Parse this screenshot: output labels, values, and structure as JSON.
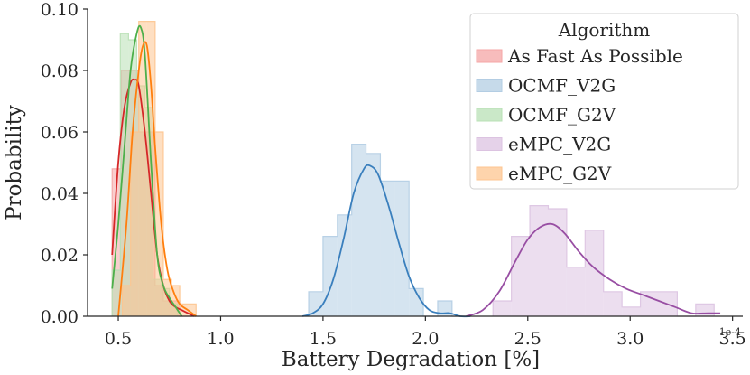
{
  "chart_data": {
    "type": "histogram",
    "xlabel": "Battery Degradation [%]",
    "ylabel": "Probability",
    "x_offset_label": "1e-4",
    "xlim": [
      0.35,
      3.55
    ],
    "ylim": [
      0.0,
      0.1
    ],
    "xticks": [
      {
        "value": 0.5,
        "label": "0.5"
      },
      {
        "value": 1.0,
        "label": "1.0"
      },
      {
        "value": 1.5,
        "label": "1.5"
      },
      {
        "value": 2.0,
        "label": "2.0"
      },
      {
        "value": 2.5,
        "label": "2.5"
      },
      {
        "value": 3.0,
        "label": "3.0"
      },
      {
        "value": 3.5,
        "label": "3.5"
      }
    ],
    "yticks": [
      {
        "value": 0.0,
        "label": "0.00"
      },
      {
        "value": 0.02,
        "label": "0.02"
      },
      {
        "value": 0.04,
        "label": "0.04"
      },
      {
        "value": 0.06,
        "label": "0.06"
      },
      {
        "value": 0.08,
        "label": "0.08"
      },
      {
        "value": 0.1,
        "label": "0.10"
      }
    ],
    "legend": {
      "title": "Algorithm",
      "position": "top-right"
    },
    "series": [
      {
        "name": "As Fast As Possible",
        "color": "#d62728",
        "fill": "#f4a6a6",
        "bin_edges": [
          0.47,
          0.515,
          0.56,
          0.6,
          0.64,
          0.68,
          0.72,
          0.76,
          0.8,
          0.84,
          0.88
        ],
        "probabilities": [
          0.048,
          0.08,
          0.08,
          0.06,
          0.06,
          0.01,
          0.005,
          0.005,
          0.0,
          0.0
        ],
        "kde_x": [
          0.47,
          0.5,
          0.53,
          0.56,
          0.58,
          0.6,
          0.63,
          0.66,
          0.69,
          0.72,
          0.75,
          0.78,
          0.81,
          0.84,
          0.87
        ],
        "kde_y": [
          0.02,
          0.05,
          0.068,
          0.076,
          0.077,
          0.075,
          0.06,
          0.04,
          0.02,
          0.01,
          0.005,
          0.003,
          0.002,
          0.001,
          0.0
        ]
      },
      {
        "name": "OCMF_V2G",
        "color": "#3a7fbd",
        "fill": "#b3cde3",
        "bin_edges": [
          1.43,
          1.5,
          1.57,
          1.64,
          1.71,
          1.78,
          1.85,
          1.92,
          1.99,
          2.06,
          2.13,
          2.2
        ],
        "probabilities": [
          0.008,
          0.026,
          0.033,
          0.056,
          0.053,
          0.044,
          0.044,
          0.009,
          0.0,
          0.005,
          0.0
        ],
        "kde_x": [
          1.4,
          1.45,
          1.5,
          1.55,
          1.6,
          1.65,
          1.7,
          1.73,
          1.77,
          1.82,
          1.87,
          1.92,
          1.97,
          2.02,
          2.07,
          2.12,
          2.17,
          2.22
        ],
        "kde_y": [
          0.0,
          0.001,
          0.004,
          0.012,
          0.025,
          0.04,
          0.048,
          0.049,
          0.046,
          0.036,
          0.024,
          0.013,
          0.006,
          0.002,
          0.001,
          0.001,
          0.0,
          0.0
        ]
      },
      {
        "name": "OCMF_G2V",
        "color": "#4daf4a",
        "fill": "#b8e0b5",
        "bin_edges": [
          0.47,
          0.51,
          0.55,
          0.59,
          0.63,
          0.67,
          0.71,
          0.75,
          0.79
        ],
        "probabilities": [
          0.015,
          0.092,
          0.09,
          0.075,
          0.068,
          0.012,
          0.009,
          0.004
        ],
        "kde_x": [
          0.47,
          0.5,
          0.53,
          0.56,
          0.59,
          0.61,
          0.63,
          0.66,
          0.69,
          0.72,
          0.75,
          0.78,
          0.81
        ],
        "kde_y": [
          0.009,
          0.03,
          0.055,
          0.08,
          0.092,
          0.094,
          0.085,
          0.05,
          0.02,
          0.01,
          0.006,
          0.003,
          0.0
        ]
      },
      {
        "name": "eMPC_V2G",
        "color": "#984ea3",
        "fill": "#dcc3e1",
        "bin_edges": [
          2.33,
          2.42,
          2.51,
          2.6,
          2.69,
          2.78,
          2.87,
          2.96,
          3.05,
          3.14,
          3.23,
          3.32,
          3.41
        ],
        "probabilities": [
          0.005,
          0.026,
          0.036,
          0.035,
          0.016,
          0.028,
          0.008,
          0.003,
          0.008,
          0.008,
          0.0,
          0.004
        ],
        "kde_x": [
          2.2,
          2.28,
          2.36,
          2.44,
          2.5,
          2.56,
          2.62,
          2.68,
          2.75,
          2.82,
          2.9,
          2.98,
          3.06,
          3.14,
          3.22,
          3.3,
          3.38,
          3.44
        ],
        "kde_y": [
          0.0,
          0.002,
          0.008,
          0.018,
          0.025,
          0.029,
          0.03,
          0.027,
          0.021,
          0.016,
          0.012,
          0.009,
          0.007,
          0.005,
          0.003,
          0.001,
          0.001,
          0.001
        ]
      },
      {
        "name": "eMPC_G2V",
        "color": "#ff7f0e",
        "fill": "#fdc590",
        "bin_edges": [
          0.52,
          0.56,
          0.6,
          0.64,
          0.68,
          0.72,
          0.76,
          0.8,
          0.84,
          0.88
        ],
        "probabilities": [
          0.01,
          0.06,
          0.096,
          0.096,
          0.06,
          0.012,
          0.01,
          0.004,
          0.004
        ],
        "kde_x": [
          0.5,
          0.54,
          0.57,
          0.6,
          0.62,
          0.64,
          0.66,
          0.68,
          0.71,
          0.74,
          0.77,
          0.8,
          0.84,
          0.88
        ],
        "kde_y": [
          0.0,
          0.03,
          0.06,
          0.08,
          0.088,
          0.088,
          0.075,
          0.055,
          0.03,
          0.015,
          0.008,
          0.004,
          0.002,
          0.0
        ]
      }
    ]
  }
}
